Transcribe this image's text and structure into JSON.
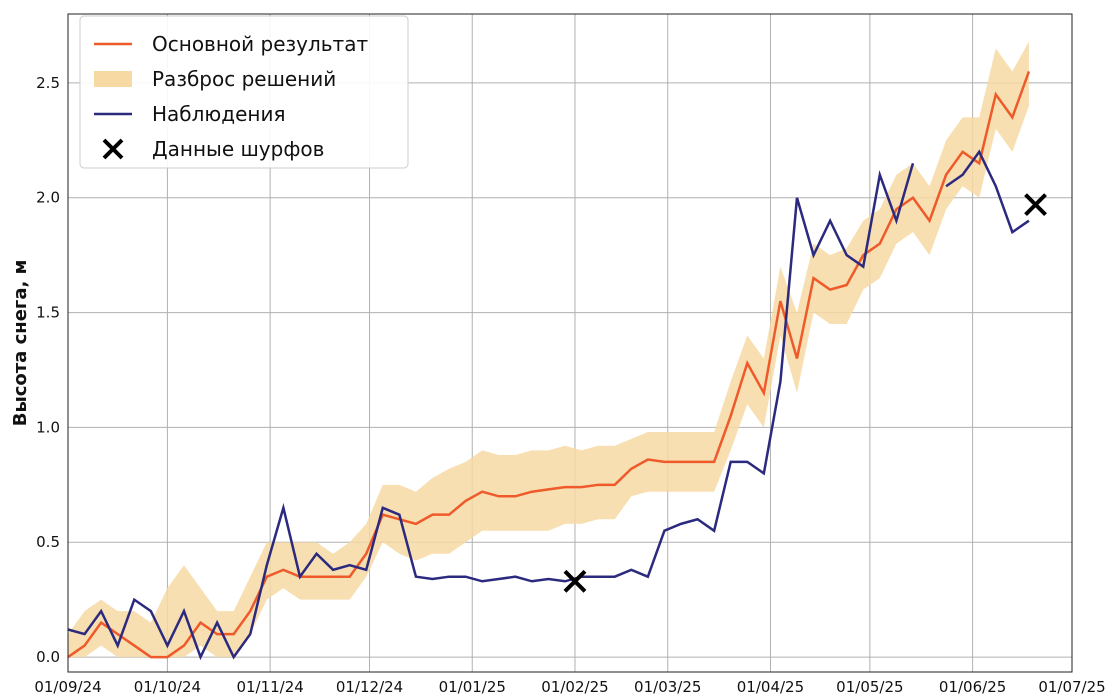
{
  "chart_data": {
    "type": "line",
    "y_label": "Высота снега, м",
    "x": [
      "2024-09-01",
      "2024-09-06",
      "2024-09-11",
      "2024-09-16",
      "2024-09-21",
      "2024-09-26",
      "2024-10-01",
      "2024-10-06",
      "2024-10-11",
      "2024-10-16",
      "2024-10-21",
      "2024-10-26",
      "2024-10-31",
      "2024-11-05",
      "2024-11-10",
      "2024-11-15",
      "2024-11-20",
      "2024-11-25",
      "2024-11-30",
      "2024-12-05",
      "2024-12-10",
      "2024-12-15",
      "2024-12-20",
      "2024-12-25",
      "2024-12-30",
      "2025-01-04",
      "2025-01-09",
      "2025-01-14",
      "2025-01-19",
      "2025-01-24",
      "2025-01-29",
      "2025-02-03",
      "2025-02-08",
      "2025-02-13",
      "2025-02-18",
      "2025-02-23",
      "2025-02-28",
      "2025-03-05",
      "2025-03-10",
      "2025-03-15",
      "2025-03-20",
      "2025-03-25",
      "2025-03-30",
      "2025-04-04",
      "2025-04-09",
      "2025-04-14",
      "2025-04-19",
      "2025-04-24",
      "2025-04-29",
      "2025-05-04",
      "2025-05-09",
      "2025-05-14",
      "2025-05-19",
      "2025-05-24",
      "2025-05-29",
      "2025-06-03",
      "2025-06-08",
      "2025-06-13",
      "2025-06-18"
    ],
    "series": [
      {
        "name": "Основной результат",
        "color": "#ee5a2a",
        "kind": "line",
        "values": [
          0.0,
          0.05,
          0.15,
          0.1,
          0.05,
          0.0,
          0.0,
          0.05,
          0.15,
          0.1,
          0.1,
          0.2,
          0.35,
          0.38,
          0.35,
          0.35,
          0.35,
          0.35,
          0.45,
          0.62,
          0.6,
          0.58,
          0.62,
          0.62,
          0.68,
          0.72,
          0.7,
          0.7,
          0.72,
          0.73,
          0.74,
          0.74,
          0.75,
          0.75,
          0.82,
          0.86,
          0.85,
          0.85,
          0.85,
          0.85,
          1.05,
          1.28,
          1.15,
          1.55,
          1.3,
          1.65,
          1.6,
          1.62,
          1.75,
          1.8,
          1.95,
          2.0,
          1.9,
          2.1,
          2.2,
          2.15,
          2.45,
          2.35,
          2.55
        ]
      },
      {
        "name": "Разброс решений",
        "color": "#f7d9a3",
        "kind": "band",
        "lower": [
          0,
          0,
          0.05,
          0,
          0,
          0,
          0,
          0,
          0.05,
          0,
          0,
          0.1,
          0.25,
          0.3,
          0.25,
          0.25,
          0.25,
          0.25,
          0.35,
          0.5,
          0.45,
          0.42,
          0.45,
          0.45,
          0.5,
          0.55,
          0.55,
          0.55,
          0.55,
          0.55,
          0.58,
          0.58,
          0.6,
          0.6,
          0.7,
          0.72,
          0.72,
          0.72,
          0.72,
          0.72,
          0.9,
          1.1,
          1.0,
          1.4,
          1.15,
          1.5,
          1.45,
          1.45,
          1.6,
          1.65,
          1.8,
          1.85,
          1.75,
          1.95,
          2.05,
          2.0,
          2.3,
          2.2,
          2.4
        ],
        "upper": [
          0.1,
          0.2,
          0.25,
          0.2,
          0.2,
          0.15,
          0.3,
          0.4,
          0.3,
          0.2,
          0.2,
          0.35,
          0.5,
          0.5,
          0.5,
          0.5,
          0.45,
          0.5,
          0.58,
          0.75,
          0.75,
          0.72,
          0.78,
          0.82,
          0.85,
          0.9,
          0.88,
          0.88,
          0.9,
          0.9,
          0.92,
          0.9,
          0.92,
          0.92,
          0.95,
          0.98,
          0.98,
          0.98,
          0.98,
          0.98,
          1.2,
          1.4,
          1.3,
          1.7,
          1.5,
          1.8,
          1.75,
          1.78,
          1.9,
          1.95,
          2.1,
          2.15,
          2.05,
          2.25,
          2.35,
          2.35,
          2.65,
          2.55,
          2.68
        ]
      },
      {
        "name": "Наблюдения",
        "color": "#2b2a7e",
        "kind": "line",
        "values": [
          0.12,
          0.1,
          0.2,
          0.05,
          0.25,
          0.2,
          0.05,
          0.2,
          0.0,
          0.15,
          0.0,
          0.1,
          0.4,
          0.65,
          0.35,
          0.45,
          0.38,
          0.4,
          0.38,
          0.65,
          0.62,
          0.35,
          0.34,
          0.35,
          0.35,
          0.33,
          0.34,
          0.35,
          0.33,
          0.34,
          0.33,
          0.35,
          0.35,
          0.35,
          0.38,
          0.35,
          0.55,
          0.58,
          0.6,
          0.55,
          0.85,
          0.85,
          0.8,
          1.2,
          2.0,
          1.75,
          1.9,
          1.75,
          1.7,
          2.1,
          1.9,
          2.15,
          null,
          2.05,
          2.1,
          2.2,
          2.05,
          1.85,
          1.9
        ]
      },
      {
        "name": "Данные шурфов",
        "color": "#000000",
        "kind": "marker",
        "x": [
          "2025-02-01",
          "2025-06-20"
        ],
        "values": [
          0.33,
          1.97
        ]
      }
    ],
    "xlim": [
      "2024-09-01",
      "2025-07-01"
    ],
    "xticks": [
      {
        "value": "2024-09-01",
        "label": "01/09/24"
      },
      {
        "value": "2024-10-01",
        "label": "01/10/24"
      },
      {
        "value": "2024-11-01",
        "label": "01/11/24"
      },
      {
        "value": "2024-12-01",
        "label": "01/12/24"
      },
      {
        "value": "2025-01-01",
        "label": "01/01/25"
      },
      {
        "value": "2025-02-01",
        "label": "01/02/25"
      },
      {
        "value": "2025-03-01",
        "label": "01/03/25"
      },
      {
        "value": "2025-04-01",
        "label": "01/04/25"
      },
      {
        "value": "2025-05-01",
        "label": "01/05/25"
      },
      {
        "value": "2025-06-01",
        "label": "01/06/25"
      },
      {
        "value": "2025-07-01",
        "label": "01/07/25"
      }
    ],
    "ylim": [
      -0.065,
      2.8
    ],
    "yticks": [
      {
        "value": 0,
        "label": "0.0"
      },
      0.5,
      {
        "value": 1,
        "label": "1.0"
      },
      1.5,
      {
        "value": 2,
        "label": "2.0"
      },
      2.5
    ],
    "grid": true,
    "legend": "upper left"
  }
}
